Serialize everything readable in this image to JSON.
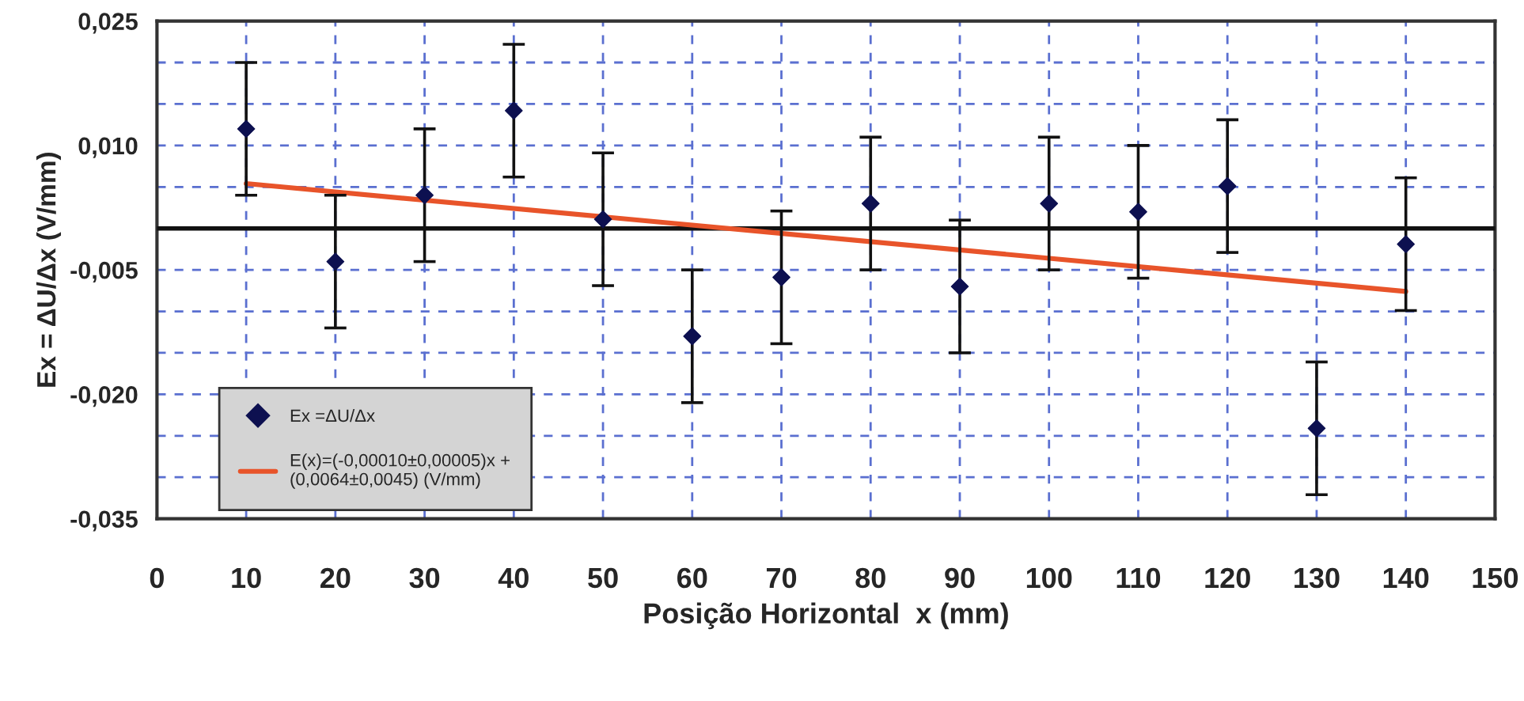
{
  "chart_data": {
    "type": "scatter",
    "xlabel": "Posição Horizontal  x (mm)",
    "ylabel": "Ex = ΔU/Δx (V/mm)",
    "series": [
      {
        "name": "Ex =ΔU/Δx",
        "color": "#0d1050",
        "marker": "diamond",
        "x": [
          10,
          20,
          30,
          40,
          50,
          60,
          70,
          80,
          90,
          100,
          110,
          120,
          130,
          140
        ],
        "values": [
          0.012,
          -0.004,
          0.004,
          0.0142,
          0.0011,
          -0.013,
          -0.0059,
          0.003,
          -0.007,
          0.003,
          0.002,
          0.0051,
          -0.0241,
          -0.0019
        ],
        "errors": [
          0.008,
          0.008,
          0.008,
          0.008,
          0.008,
          0.008,
          0.008,
          0.008,
          0.008,
          0.008,
          0.008,
          0.008,
          0.008,
          0.008
        ]
      },
      {
        "name": "E(x)=(-0,00010±0,00005)x +\n(0,0064±0,0045) (V/mm)",
        "type": "line",
        "color": "#e8542a",
        "line_style": "solid",
        "x": [
          10,
          140
        ],
        "values": [
          0.0054,
          -0.0076
        ]
      }
    ],
    "xlim": [
      0,
      150
    ],
    "xticks": [
      0,
      10,
      20,
      30,
      40,
      50,
      60,
      70,
      80,
      90,
      100,
      110,
      120,
      130,
      140,
      150
    ],
    "ylim": [
      -0.035,
      0.025
    ],
    "yticks": [
      {
        "value": -0.035,
        "label": "-0,035"
      },
      {
        "value": -0.03,
        "label": null
      },
      {
        "value": -0.025,
        "label": null
      },
      {
        "value": -0.02,
        "label": "-0,020"
      },
      {
        "value": -0.015,
        "label": null
      },
      {
        "value": -0.01,
        "label": null
      },
      {
        "value": -0.005,
        "label": "-0,005"
      },
      {
        "value": 0,
        "label": null
      },
      {
        "value": 0.005,
        "label": null
      },
      {
        "value": 0.01,
        "label": "0,010"
      },
      {
        "value": 0.015,
        "label": null
      },
      {
        "value": 0.02,
        "label": null
      },
      {
        "value": 0.025,
        "label": "0,025"
      }
    ],
    "ref_lines": [
      {
        "axis": "y",
        "value": 0,
        "color": "#111111"
      }
    ],
    "grid": true,
    "legend": "bottom left"
  }
}
